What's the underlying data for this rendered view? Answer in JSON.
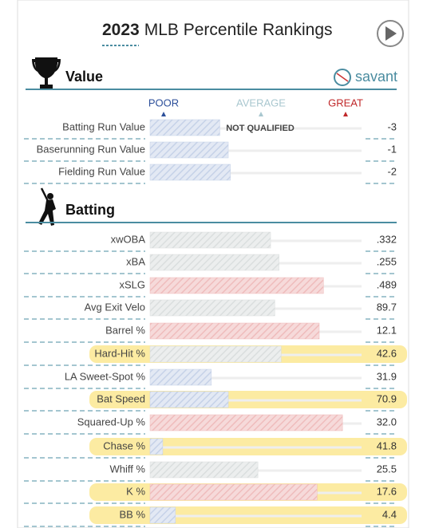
{
  "header": {
    "year": "2023",
    "title": "MLB Percentile Rankings"
  },
  "sections": [
    {
      "title": "Value",
      "logo": "savant",
      "legend": [
        "POOR",
        "AVERAGE",
        "GREAT"
      ],
      "rows": [
        {
          "label": "Batting Run Value",
          "value": "-3",
          "percentile": 33,
          "note": "NOT QUALIFIED"
        },
        {
          "label": "Baserunning Run Value",
          "value": "-1",
          "percentile": 37
        },
        {
          "label": "Fielding Run Value",
          "value": "-2",
          "percentile": 38
        }
      ]
    },
    {
      "title": "Batting",
      "rows": [
        {
          "label": "xwOBA",
          "value": ".332",
          "percentile": 57
        },
        {
          "label": "xBA",
          "value": ".255",
          "percentile": 61
        },
        {
          "label": "xSLG",
          "value": ".489",
          "percentile": 82
        },
        {
          "label": "Avg Exit Velo",
          "value": "89.7",
          "percentile": 59
        },
        {
          "label": "Barrel %",
          "value": "12.1",
          "percentile": 80
        },
        {
          "label": "Hard-Hit %",
          "value": "42.6",
          "percentile": 62,
          "highlighted": true
        },
        {
          "label": "LA Sweet-Spot %",
          "value": "31.9",
          "percentile": 29
        },
        {
          "label": "Bat Speed",
          "value": "70.9",
          "percentile": 37,
          "highlighted": true
        },
        {
          "label": "Squared-Up %",
          "value": "32.0",
          "percentile": 91
        },
        {
          "label": "Chase %",
          "value": "41.8",
          "percentile": 6,
          "highlighted": true
        },
        {
          "label": "Whiff %",
          "value": "25.5",
          "percentile": 51
        },
        {
          "label": "K %",
          "value": "17.6",
          "percentile": 79,
          "highlighted": true
        },
        {
          "label": "BB %",
          "value": "4.4",
          "percentile": 12,
          "highlighted": true
        }
      ]
    }
  ]
}
